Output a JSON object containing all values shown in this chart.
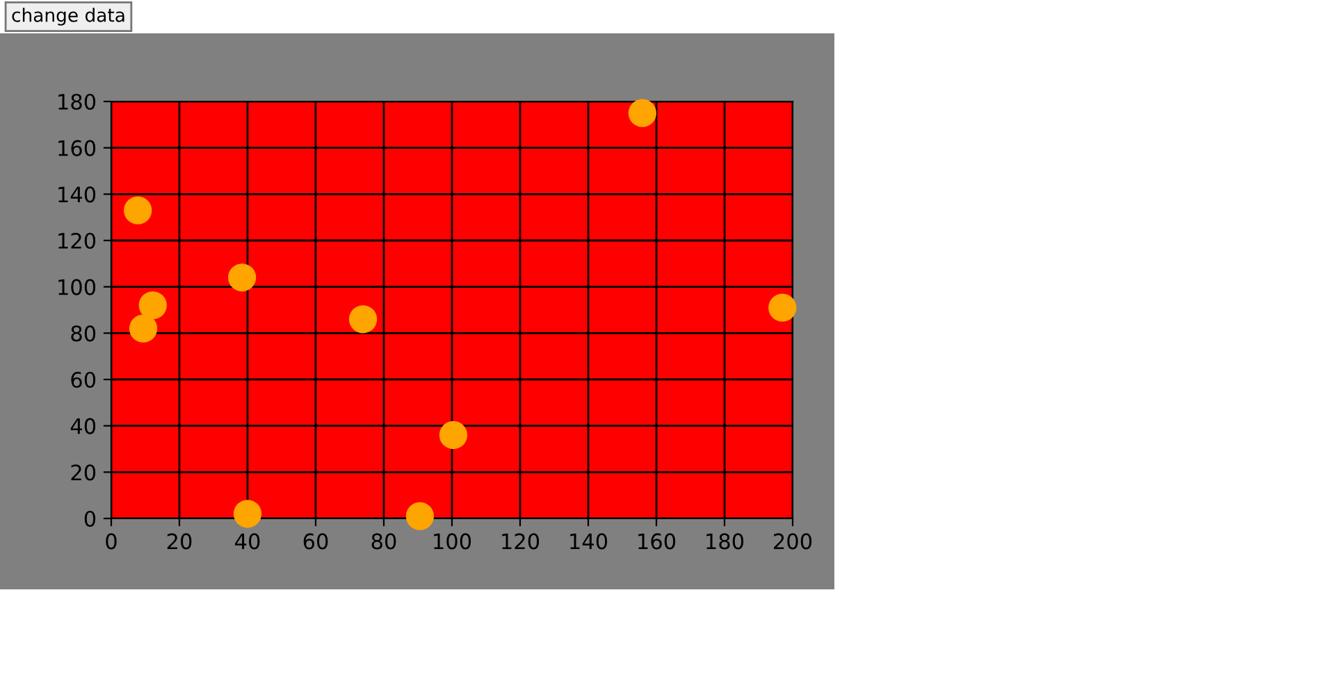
{
  "chart_data": {
    "type": "scatter",
    "annotations": [
      "change data"
    ],
    "series": [
      {
        "color": "#ffa500",
        "x": [
          7.8,
          12.2,
          9.4,
          38.4,
          40,
          73.9,
          90.6,
          100.4,
          155.9,
          197
        ],
        "values": [
          133,
          92,
          82,
          104,
          2,
          86,
          1,
          36,
          175,
          91
        ]
      }
    ],
    "xlim": [
      0,
      200
    ],
    "xticks": [
      0,
      20,
      40,
      60,
      80,
      100,
      120,
      140,
      160,
      180,
      200
    ],
    "ylim": [
      0,
      180
    ],
    "yticks": [
      0,
      20,
      40,
      60,
      80,
      100,
      120,
      140,
      160,
      180
    ],
    "grid": true,
    "marker": "circle"
  }
}
